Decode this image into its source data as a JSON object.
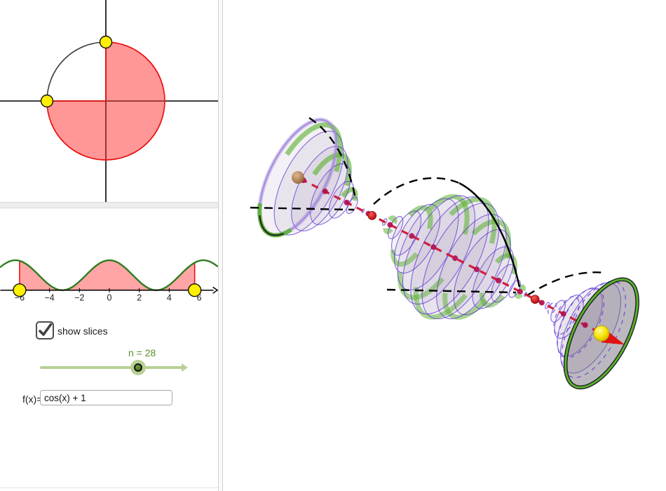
{
  "controls": {
    "checkbox": {
      "label": "show slices",
      "checked": true
    },
    "slider": {
      "label": "n = 28",
      "variable": "n",
      "value": 28
    },
    "function_input": {
      "label": "f(x)=",
      "value": "cos(x) + 1"
    }
  },
  "circle_view": {
    "sector_fill": "#ff3030",
    "sector_opacity": 0.5,
    "sector_stroke": "#e81212",
    "point_fill": "#ffef00",
    "swept_angle_deg": 270,
    "point_angles_deg": [
      90,
      180
    ]
  },
  "chart_data": {
    "type": "line",
    "title": "",
    "expression": "f(x) = cos(x) + 1",
    "x_ticks": [
      -6,
      -4,
      -2,
      0,
      2,
      4,
      6
    ],
    "x_tick_labels": [
      "−6",
      "−4",
      "−2",
      "0",
      "2",
      "4",
      "6"
    ],
    "x_range": [
      -7.3,
      7.25
    ],
    "y_range": [
      0,
      2.3
    ],
    "shaded_interval": [
      -6,
      5.7
    ],
    "max_point": {
      "x": 0,
      "y": 2
    },
    "zeros": [
      -3.14159,
      3.14159
    ],
    "n_slices": 28,
    "curve_color": "#2d7d1e",
    "fill_color": "#ff4040",
    "region_stroke": "#ef1212",
    "endpoint_fill": "#ffef00"
  },
  "view3d": {
    "interval": [
      -6,
      5.7
    ],
    "surface_fill": "#86749b",
    "ring_color": "#5a2fd6",
    "slice_color": "#57b02c",
    "halo_color": "#c7b4ec",
    "axis_color": "#d01535",
    "dot_color": "#b01050",
    "pinch_color": "#e00000",
    "left_endpoint_color": "#c1935f",
    "right_endpoint_color": "#ffee00"
  }
}
